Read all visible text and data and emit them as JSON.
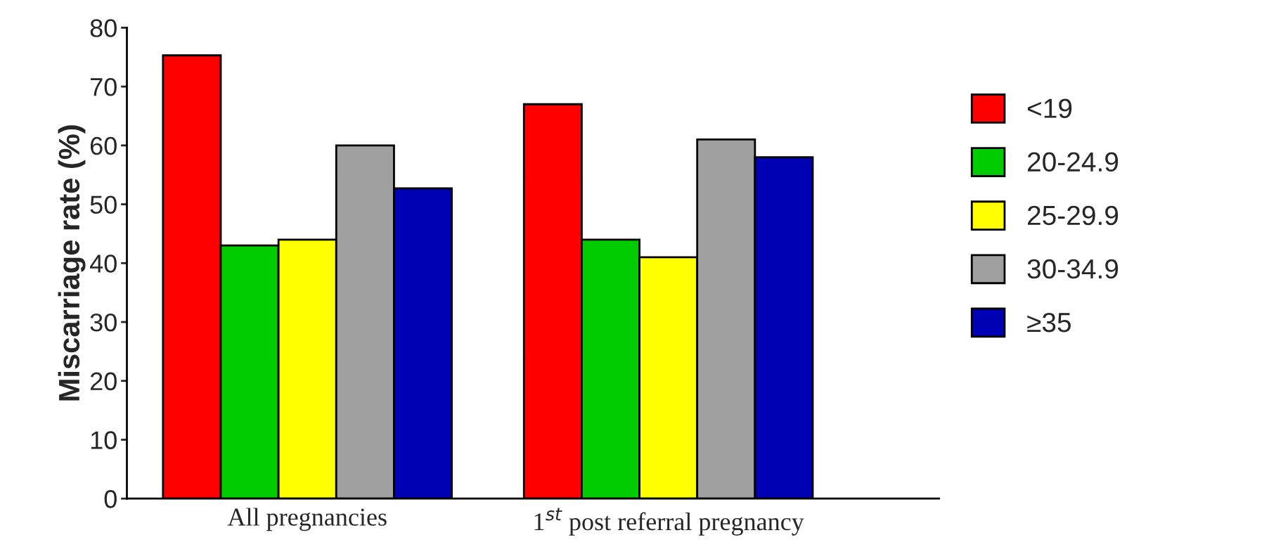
{
  "chart_data": {
    "type": "bar",
    "ylabel": "Miscarriage rate (%)",
    "categories": [
      "All pregnancies",
      "1$^{st}$ post referral pregnancy"
    ],
    "series": [
      {
        "name": "<19",
        "color": "#ff0000",
        "values": [
          75.3,
          67
        ]
      },
      {
        "name": "20-24.9",
        "color": "#00cc00",
        "values": [
          43,
          44
        ]
      },
      {
        "name": "25-29.9",
        "color": "#ffff00",
        "values": [
          44,
          41
        ]
      },
      {
        "name": "30-34.9",
        "color": "#a0a0a0",
        "values": [
          60,
          61
        ]
      },
      {
        "name": "≥35",
        "color": "#0000b4",
        "values": [
          52.7,
          58
        ]
      }
    ],
    "ylim": [
      0,
      80
    ],
    "yticks": [
      0,
      10,
      20,
      30,
      40,
      50,
      60,
      70,
      80
    ],
    "grid": false,
    "legend": "right"
  }
}
